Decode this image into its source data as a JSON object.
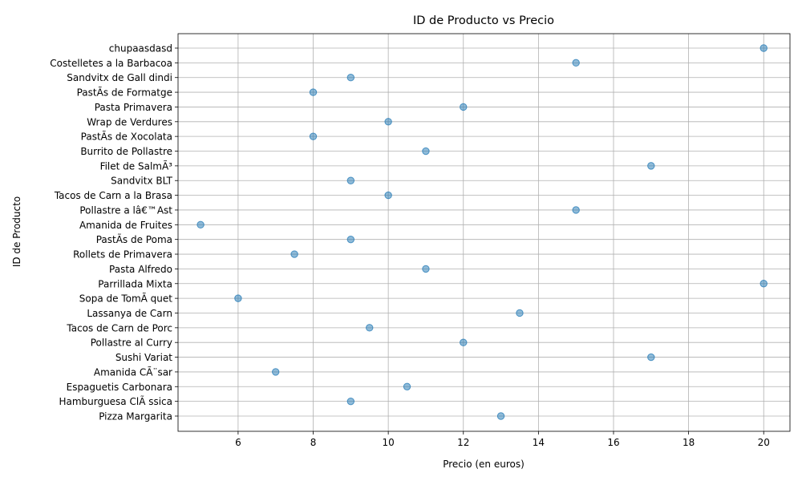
{
  "chart_data": {
    "type": "scatter",
    "title": "ID de Producto vs Precio",
    "xlabel": "Precio (en euros)",
    "ylabel": "ID de Producto",
    "xlim": [
      4.4,
      20.7
    ],
    "xticks": [
      6,
      8,
      10,
      12,
      14,
      16,
      18,
      20
    ],
    "grid": true,
    "legend": "none",
    "marker_color": "#1f77b4",
    "marker_alpha": 0.5,
    "categories": [
      "Pizza Margarita",
      "Hamburguesa ClÃ ssica",
      "Espaguetis Carbonara",
      "Amanida CÃ¨sar",
      "Sushi Variat",
      "Pollastre al Curry",
      "Tacos de Carn de Porc",
      "Lassanya de Carn",
      "Sopa de TomÃ quet",
      "Parrillada Mixta",
      "Pasta Alfredo",
      "Rollets de Primavera",
      "PastÃ­s de Poma",
      "Amanida de Fruites",
      "Pollastre a lâ€™Ast",
      "Tacos de Carn a la Brasa",
      "Sandvitx BLT",
      "Filet de SalmÃ³",
      "Burrito de Pollastre",
      "PastÃ­s de Xocolata",
      "Wrap de Verdures",
      "Pasta Primavera",
      "PastÃ­s de Formatge",
      "Sandvitx de Gall dindi",
      "Costelletes a la Barbacoa",
      "chupaasdasd"
    ],
    "values": [
      13,
      9,
      10.5,
      7,
      17,
      12,
      9.5,
      13.5,
      6,
      20,
      11,
      7.5,
      9,
      5,
      15,
      10,
      9,
      17,
      11,
      8,
      10,
      12,
      8,
      9,
      15,
      20
    ]
  }
}
